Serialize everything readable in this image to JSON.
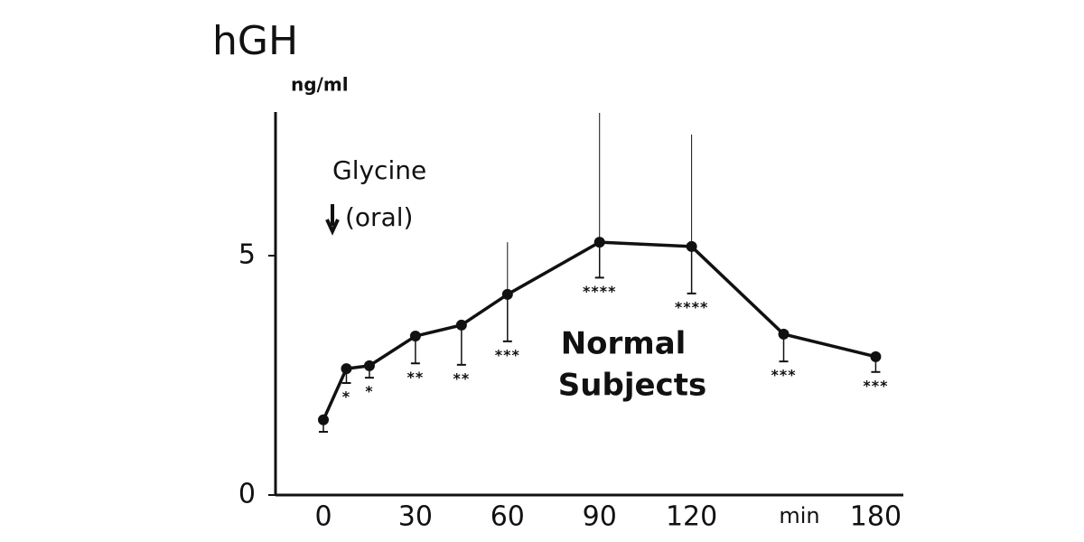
{
  "chart_data": {
    "type": "line",
    "title": "hGH",
    "ylabel": "ng/ml",
    "xlabel": "min",
    "annotation": [
      "Glycine",
      "(oral)"
    ],
    "label": [
      "Normal",
      "Subjects"
    ],
    "x": [
      0,
      7.5,
      15,
      30,
      45,
      60,
      90,
      120,
      150,
      180
    ],
    "values": [
      1.57,
      2.64,
      2.7,
      3.32,
      3.55,
      4.19,
      5.28,
      5.19,
      3.36,
      2.89
    ],
    "error_low": [
      0.25,
      0.3,
      0.25,
      0.57,
      0.83,
      0.98,
      0.74,
      0.98,
      0.57,
      0.32
    ],
    "error_high": [
      null,
      null,
      null,
      null,
      null,
      1.09,
      2.7,
      2.34,
      null,
      null
    ],
    "significance": [
      null,
      "*",
      "*",
      "**",
      "**",
      "***",
      "****",
      "****",
      "***",
      "***"
    ],
    "color": "#111111",
    "xlim": [
      -15.6,
      189
    ],
    "ylim": [
      0,
      8
    ],
    "xticks": [
      0,
      30,
      60,
      90,
      120,
      180
    ],
    "yticks": [
      0,
      5
    ]
  }
}
